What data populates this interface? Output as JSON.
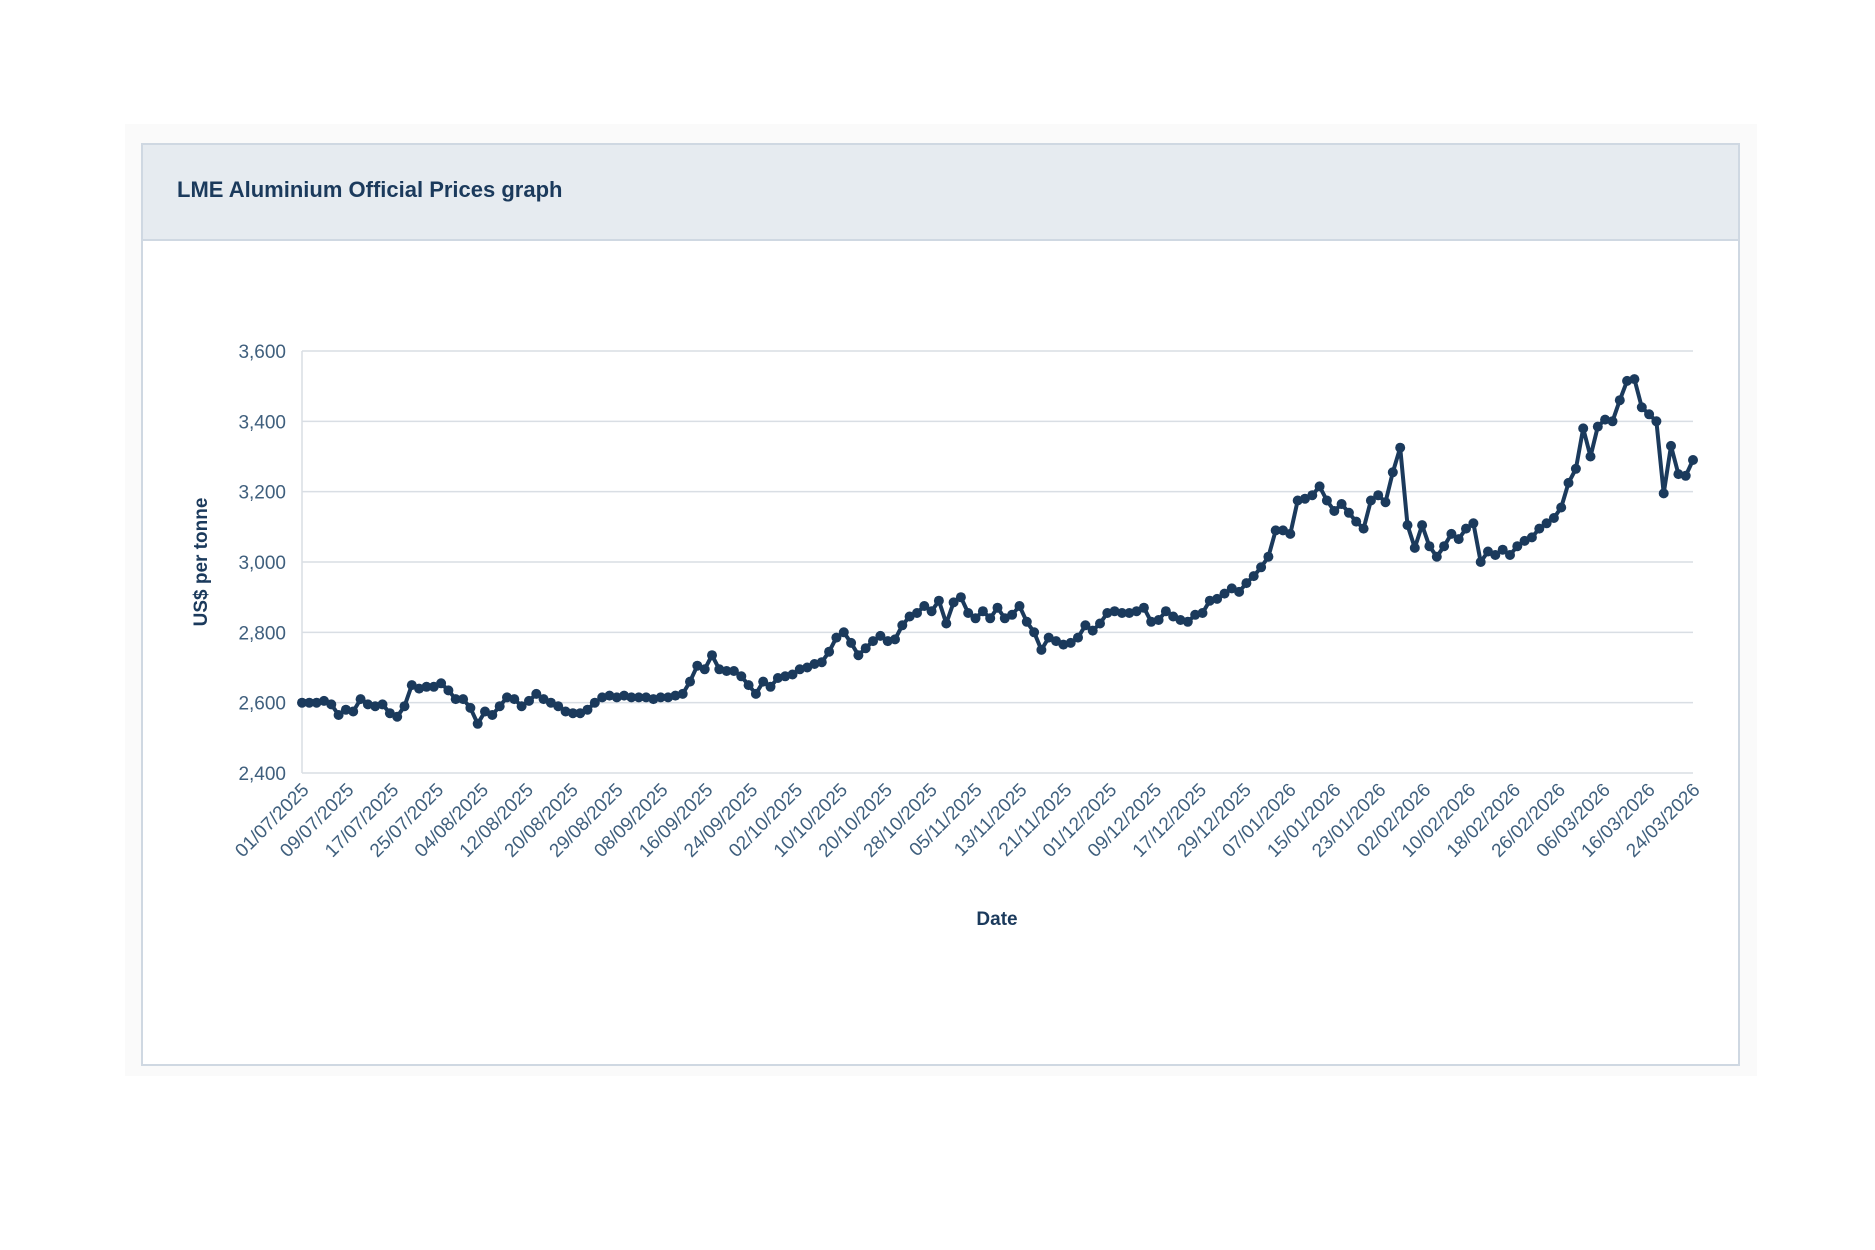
{
  "panel": {
    "title": "LME Aluminium Official Prices graph"
  },
  "chart_data": {
    "type": "line",
    "title": "LME Aluminium Official Prices graph",
    "xlabel": "Date",
    "ylabel": "US$ per tonne",
    "ylim": [
      2400,
      3600
    ],
    "yticks": [
      2400,
      2600,
      2800,
      3000,
      3200,
      3400,
      3600
    ],
    "ytick_labels": [
      "2,400",
      "2,600",
      "2,800",
      "3,000",
      "3,200",
      "3,400",
      "3,600"
    ],
    "xtick_labels": [
      "01/07/2025",
      "09/07/2025",
      "17/07/2025",
      "25/07/2025",
      "04/08/2025",
      "12/08/2025",
      "20/08/2025",
      "29/08/2025",
      "08/09/2025",
      "16/09/2025",
      "24/09/2025",
      "02/10/2025",
      "10/10/2025",
      "20/10/2025",
      "28/10/2025",
      "05/11/2025",
      "13/11/2025",
      "21/11/2025",
      "01/12/2025",
      "09/12/2025",
      "17/12/2025",
      "29/12/2025",
      "07/01/2026",
      "15/01/2026",
      "23/01/2026",
      "02/02/2026",
      "10/02/2026",
      "18/02/2026",
      "26/02/2026",
      "06/03/2026",
      "16/03/2026",
      "24/03/2026"
    ],
    "grid": true,
    "colors": {
      "line": "#1b3a5c",
      "grid": "#d9dee4",
      "axis_text": "#3f5f7d"
    },
    "series": [
      {
        "name": "LME Aluminium Official Price",
        "values": [
          2600,
          2600,
          2600,
          2605,
          2595,
          2565,
          2580,
          2575,
          2610,
          2595,
          2590,
          2595,
          2570,
          2560,
          2590,
          2650,
          2640,
          2645,
          2645,
          2655,
          2635,
          2610,
          2610,
          2585,
          2540,
          2575,
          2565,
          2590,
          2615,
          2610,
          2590,
          2605,
          2625,
          2610,
          2600,
          2590,
          2575,
          2570,
          2570,
          2580,
          2600,
          2615,
          2620,
          2615,
          2620,
          2615,
          2615,
          2615,
          2610,
          2615,
          2615,
          2620,
          2625,
          2660,
          2705,
          2695,
          2735,
          2695,
          2690,
          2690,
          2675,
          2650,
          2625,
          2660,
          2645,
          2670,
          2675,
          2680,
          2695,
          2700,
          2710,
          2715,
          2745,
          2785,
          2800,
          2770,
          2735,
          2755,
          2775,
          2790,
          2775,
          2780,
          2820,
          2845,
          2855,
          2875,
          2860,
          2890,
          2825,
          2885,
          2900,
          2855,
          2840,
          2860,
          2840,
          2870,
          2840,
          2850,
          2875,
          2830,
          2800,
          2750,
          2785,
          2775,
          2765,
          2770,
          2785,
          2820,
          2805,
          2825,
          2855,
          2860,
          2855,
          2855,
          2860,
          2870,
          2830,
          2835,
          2860,
          2845,
          2835,
          2830,
          2850,
          2855,
          2890,
          2895,
          2910,
          2925,
          2915,
          2940,
          2960,
          2985,
          3015,
          3090,
          3090,
          3080,
          3175,
          3180,
          3190,
          3215,
          3175,
          3145,
          3165,
          3140,
          3115,
          3095,
          3175,
          3190,
          3170,
          3255,
          3325,
          3105,
          3040,
          3105,
          3045,
          3015,
          3045,
          3080,
          3065,
          3095,
          3110,
          3000,
          3030,
          3020,
          3035,
          3020,
          3045,
          3060,
          3070,
          3095,
          3110,
          3125,
          3155,
          3225,
          3265,
          3380,
          3300,
          3385,
          3405,
          3400,
          3460,
          3515,
          3520,
          3440,
          3420,
          3400,
          3195,
          3330,
          3250,
          3245,
          3290
        ]
      }
    ]
  }
}
